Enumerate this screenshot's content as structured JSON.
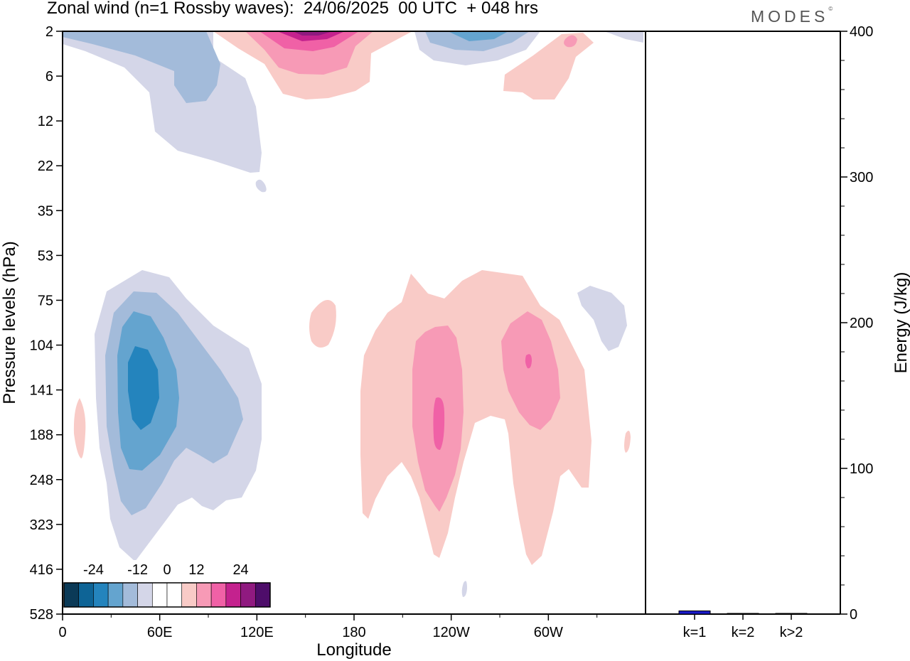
{
  "header": {
    "title": "Zonal wind (n=1 Rossby waves):  24/06/2025  00 UTC  + 048 hrs",
    "brand": "MODES",
    "brand_mark": "©"
  },
  "colors": {
    "palette": [
      "#0b3a57",
      "#0e6496",
      "#2484bd",
      "#64a4cf",
      "#a3bbda",
      "#d4d6e8",
      "#ffffff",
      "#ffffff",
      "#f9cbc7",
      "#f79ab6",
      "#f061a6",
      "#c4228e",
      "#901a80",
      "#4e0d6a"
    ],
    "bar": "#1a1ac8"
  },
  "chart_data": [
    {
      "type": "heatmap",
      "variable": "Zonal wind (n=1 Rossby waves)",
      "x": {
        "label": "Longitude",
        "ticks": [
          "0",
          "60E",
          "120E",
          "180",
          "120W",
          "60W"
        ],
        "range_deg_east": [
          0,
          360
        ]
      },
      "y": {
        "label": "Pressure levels (hPa)",
        "ticks": [
          "2",
          "6",
          "12",
          "22",
          "35",
          "53",
          "75",
          "104",
          "141",
          "188",
          "248",
          "323",
          "416",
          "528"
        ],
        "direction": "pressure increases downward"
      },
      "colorbar": {
        "tick_labels": [
          "-24",
          "-12",
          "0",
          "12",
          "24"
        ],
        "bounds": [
          -30,
          -25,
          -20,
          -15,
          -10,
          -5,
          0,
          5,
          10,
          15,
          20,
          25,
          30
        ],
        "placement": "bottom-left inset"
      },
      "features": [
        {
          "name": "easterly core",
          "lon": 50,
          "level_hPa": 141,
          "peak_value": -17
        },
        {
          "name": "upper easterlies",
          "lon": 60,
          "level_hPa": 6,
          "peak_value": -8
        },
        {
          "name": "upper easterlies east Pacific",
          "lon": 230,
          "level_hPa": 2,
          "peak_value": -15
        },
        {
          "name": "upper westerly core",
          "lon": 150,
          "level_hPa": 2,
          "peak_value": 27
        },
        {
          "name": "westerly core",
          "lon": 246,
          "level_hPa": 170,
          "peak_value": 16
        },
        {
          "name": "westerly core",
          "lon": 295,
          "level_hPa": 120,
          "peak_value": 15
        }
      ]
    },
    {
      "type": "bar",
      "categories": [
        "k=1",
        "k=2",
        "k>2"
      ],
      "values": [
        2.2,
        0.3,
        0.4
      ],
      "ylabel": "Energy (J/kg)",
      "ylim": [
        0,
        400
      ],
      "yticks": [
        0,
        100,
        200,
        300,
        400
      ]
    }
  ]
}
